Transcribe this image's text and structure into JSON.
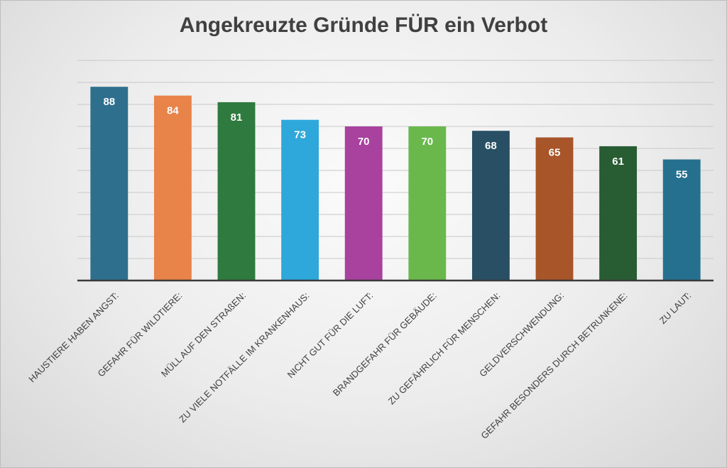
{
  "chart_data": {
    "type": "bar",
    "title": "Angekreuzte Gründe FÜR ein Verbot",
    "xlabel": "",
    "ylabel": "",
    "ylim": [
      0,
      100
    ],
    "grid": true,
    "legend": "none",
    "categories": [
      "HAUSTIERE HABEN ANGST:",
      "GEFAHR FÜR WILDTIERE:",
      "MÜLL AUF DEN STRAßEN:",
      "ZU VIELE NOTFÄLLE IM KRANKENHAUS:",
      "NICHT GUT FÜR DIE LUFT:",
      "BRANDGEFAHR FÜR GEBÄUDE:",
      "ZU GEFÄHRLICH FÜR MENSCHEN:",
      "GELDVERSCHWENDUNG:",
      "GEFAHR BESONDERS DURCH BETRUNKENE:",
      "ZU LAUT:"
    ],
    "values": [
      88,
      84,
      81,
      73,
      70,
      70,
      68,
      65,
      61,
      55
    ],
    "colors": [
      "#2e6f8e",
      "#e8834a",
      "#2f7a3e",
      "#2ea8da",
      "#a8429e",
      "#6ab84c",
      "#284f63",
      "#a8552a",
      "#285c33",
      "#26708f"
    ]
  }
}
